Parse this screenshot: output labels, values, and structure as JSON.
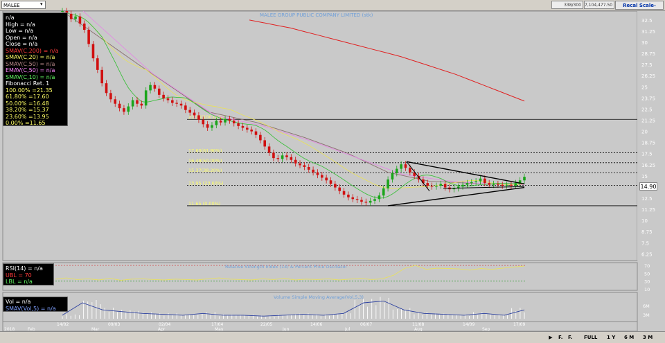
{
  "toolbar": {
    "symbol": "MALEE",
    "field1": "338/300",
    "field2": "7,104,477.50",
    "recal_label": "Recal Scale-Linear"
  },
  "price_panel": {
    "title": "MALEE GROUP PUBLIC COMPANY LIMITED (stk)",
    "last_price": "14.90",
    "legend": [
      {
        "text": "n/a",
        "color": "#ffffff"
      },
      {
        "text": "High  = n/a",
        "color": "#ffffff"
      },
      {
        "text": "Low   = n/a",
        "color": "#ffffff"
      },
      {
        "text": "Open  = n/a",
        "color": "#ffffff"
      },
      {
        "text": "Close  = n/a",
        "color": "#ffffff"
      },
      {
        "text": "SMAV(C,200)  = n/a",
        "color": "#ff3b3b"
      },
      {
        "text": "SMAV(C,20)  = n/a",
        "color": "#ffff66"
      },
      {
        "text": "SMAV(C,50)  = n/a",
        "color": "#b98a8a"
      },
      {
        "text": "EMAV(C,50)  = n/a",
        "color": "#ff88ff"
      },
      {
        "text": "SMAV(C,10)  = n/a",
        "color": "#66ff66"
      }
    ],
    "fib_title": "Fibonacci Ret. 1",
    "fib_legend": [
      "100.00% =21.35",
      "61.80% =17.60",
      "50.00% =16.48",
      "38.20% =15.37",
      "23.60% =13.95",
      "0.00% =11.65"
    ],
    "fib_chart_labels": [
      {
        "text": "21.35(100.00%)",
        "value": 21.35
      },
      {
        "text": "17.60(61.80%)",
        "value": 17.6
      },
      {
        "text": "16.48(50.00%)",
        "value": 16.48
      },
      {
        "text": "15.37(38.20%)",
        "value": 15.37
      },
      {
        "text": "13.95 (23.60%)",
        "value": 13.95
      },
      {
        "text": "11.65 (0.00%)",
        "value": 11.65
      }
    ]
  },
  "rsi_panel": {
    "title": "Relative Strength Index (14) & Percent Price Oscillator",
    "legend": [
      {
        "text": "RSI(14)  = n/a",
        "color": "#ffffff"
      },
      {
        "text": "UBL  = 70",
        "color": "#ff3b3b"
      },
      {
        "text": "LBL  = n/a",
        "color": "#66ff66"
      }
    ],
    "ticks": [
      "70",
      "50",
      "30",
      "10"
    ]
  },
  "volume_panel": {
    "title": "Volume Simple Moving Average(Vol,5,3)",
    "legend": [
      {
        "text": "Vol   = n/a",
        "color": "#ffffff"
      },
      {
        "text": "SMAV(Vol,5)  = n/a",
        "color": "#7fa0ff"
      }
    ],
    "ticks": [
      "6M",
      "3M"
    ]
  },
  "date_axis": {
    "years": [
      "2018",
      "Feb",
      "Mar",
      "Apr",
      "May",
      "Jun",
      "Jul",
      "Aug",
      "Sep"
    ],
    "labels": [
      "14/02",
      "09/03",
      "02/04",
      "17/04",
      "22/05",
      "14/06",
      "06/07",
      "11/08",
      "14/09",
      "17/09"
    ]
  },
  "bottom_bar": {
    "buttons": [
      "FULL",
      "1 Y",
      "6 M",
      "3 M"
    ],
    "icon_labels": [
      "F.",
      "F."
    ]
  },
  "chart_data": {
    "type": "candlestick",
    "title": "MALEE GROUP PUBLIC COMPANY LIMITED (stk)",
    "y_ticks": [
      "32.5",
      "31.25",
      "30",
      "28.75",
      "27.5",
      "26.25",
      "25",
      "23.75",
      "22.5",
      "21.25",
      "20",
      "18.75",
      "17.5",
      "16.25",
      "15",
      "13.75",
      "12.5",
      "11.25",
      "10",
      "8.75",
      "7.5",
      "6.25"
    ],
    "ylim": [
      5.5,
      33.5
    ],
    "closes": [
      33.5,
      33.2,
      32.6,
      32.9,
      32.1,
      31.4,
      29.8,
      28.2,
      26.9,
      25.4,
      24.3,
      23.6,
      23.1,
      22.6,
      22.2,
      22.8,
      23.5,
      23.1,
      22.9,
      24.6,
      25.2,
      24.8,
      24.1,
      23.7,
      23.5,
      23.2,
      23.1,
      22.9,
      22.4,
      22.1,
      21.8,
      21.3,
      20.8,
      20.4,
      20.7,
      21.2,
      21.0,
      21.4,
      21.2,
      20.9,
      20.6,
      20.4,
      20.2,
      20.0,
      19.6,
      19.0,
      18.3,
      17.6,
      17.0,
      16.9,
      17.3,
      17.1,
      16.8,
      16.4,
      16.2,
      16.0,
      15.7,
      15.4,
      15.1,
      14.8,
      14.5,
      14.1,
      13.7,
      13.3,
      12.9,
      12.6,
      12.4,
      12.3,
      12.1,
      12.0,
      12.2,
      12.4,
      12.8,
      13.6,
      14.6,
      15.3,
      15.8,
      16.3,
      15.9,
      15.4,
      15.0,
      14.6,
      14.2,
      13.9,
      13.8,
      13.9,
      14.1,
      13.7,
      13.5,
      13.6,
      13.8,
      14.0,
      14.2,
      14.3,
      14.4,
      14.7,
      14.2,
      14.0,
      14.1,
      14.0,
      13.9,
      14.0,
      13.9,
      14.2,
      14.5,
      14.9
    ],
    "sma200": [
      32.5,
      32.2,
      31.9,
      31.6,
      31.2,
      30.8,
      30.4,
      30.0,
      29.6,
      29.2,
      28.8,
      28.4,
      27.9,
      27.4,
      26.9,
      26.4,
      25.8,
      25.2,
      24.6,
      24.0,
      23.4
    ],
    "volume_peaks": [
      0.2,
      0.9,
      0.5,
      0.4,
      0.3,
      0.25,
      0.2,
      0.3,
      0.2,
      0.2,
      0.15,
      0.2,
      0.25,
      0.2,
      0.3,
      0.9,
      1.0,
      0.5,
      0.3,
      0.25,
      0.2,
      0.3,
      0.2,
      0.5
    ],
    "rsi": [
      35,
      38,
      34,
      36,
      33,
      37,
      32,
      35,
      36,
      34,
      33,
      35,
      34,
      33,
      36,
      38,
      35,
      34,
      33,
      36,
      34,
      37,
      33,
      35,
      34,
      36,
      33,
      35,
      37,
      34,
      36,
      45,
      62,
      70,
      60,
      63,
      62,
      61,
      58,
      62,
      60,
      63,
      66,
      68
    ]
  }
}
